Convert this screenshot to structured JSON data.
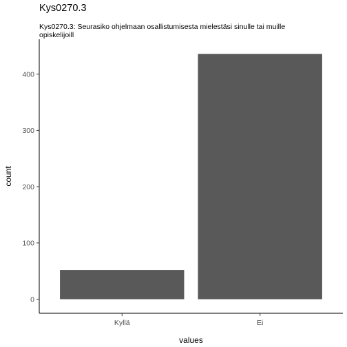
{
  "chart_data": {
    "type": "bar",
    "title": "Kys0270.3",
    "subtitle": "Kys0270.3: Seurasiko ohjelmaan osallistumisesta mielestäsi sinulle tai muille opiskelijoill",
    "xlabel": "values",
    "ylabel": "count",
    "categories": [
      "Kyllä",
      "Ei"
    ],
    "values": [
      52,
      436
    ],
    "ylim": [
      -25,
      462
    ],
    "yticks": [
      0,
      100,
      200,
      300,
      400
    ],
    "grid": false,
    "bar_color": "#595959",
    "axis_color": "#000000",
    "tick_label_color": "#4d4d4d"
  }
}
